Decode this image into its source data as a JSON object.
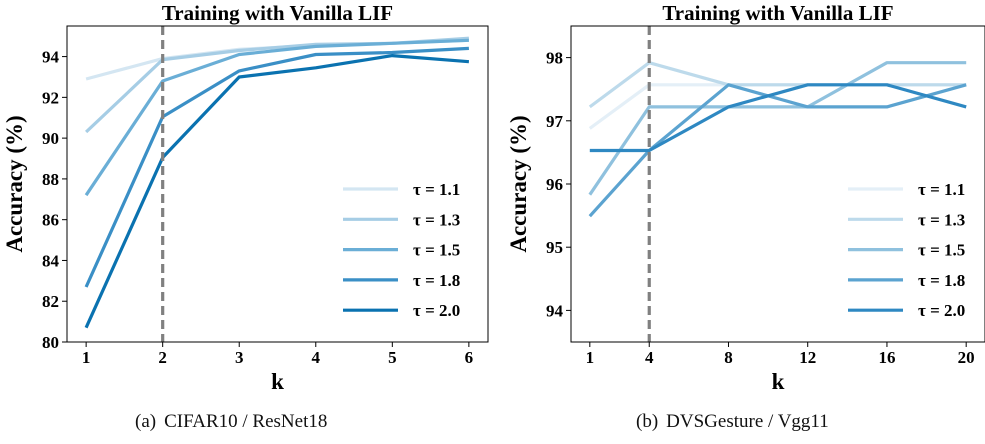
{
  "chart_data": [
    {
      "type": "line",
      "title": "Training with Vanilla LIF",
      "xlabel": "k",
      "ylabel": "Accuracy (%)",
      "x": [
        1,
        2,
        3,
        4,
        5,
        6
      ],
      "x_ticks": [
        "1",
        "2",
        "3",
        "4",
        "5",
        "6"
      ],
      "y_ticks": [
        80,
        82,
        84,
        86,
        88,
        90,
        92,
        94
      ],
      "ylim": [
        80,
        95.5
      ],
      "xlim": [
        0.75,
        6.25
      ],
      "vline_x": 2,
      "legend_position": "lower right",
      "series": [
        {
          "name": "τ = 1.1",
          "values": [
            92.9,
            93.9,
            94.35,
            94.55,
            94.65,
            94.8
          ],
          "color": "#d4e6f2"
        },
        {
          "name": "τ = 1.3",
          "values": [
            90.3,
            93.85,
            94.3,
            94.6,
            94.65,
            94.9
          ],
          "color": "#a6cde5"
        },
        {
          "name": "τ = 1.5",
          "values": [
            87.2,
            92.8,
            94.1,
            94.5,
            94.65,
            94.8
          ],
          "color": "#6aaed6"
        },
        {
          "name": "τ = 1.8",
          "values": [
            82.7,
            91.05,
            93.3,
            94.1,
            94.2,
            94.4
          ],
          "color": "#3a8fc6"
        },
        {
          "name": "τ = 2.0",
          "values": [
            80.7,
            89.05,
            93.0,
            93.45,
            94.05,
            93.75
          ],
          "color": "#0a72b0"
        }
      ],
      "caption_tag": "(a)",
      "caption": "CIFAR10 / ResNet18"
    },
    {
      "type": "line",
      "title": "Training with Vanilla LIF",
      "xlabel": "k",
      "ylabel": "Accuracy (%)",
      "x": [
        1,
        4,
        8,
        12,
        16,
        20
      ],
      "x_ticks": [
        "1",
        "4",
        "8",
        "12",
        "16",
        "20"
      ],
      "y_ticks": [
        94,
        95,
        96,
        97,
        98
      ],
      "ylim": [
        93.5,
        98.5
      ],
      "xlim": [
        0.05,
        20.95
      ],
      "vline_x": 4,
      "legend_position": "lower right",
      "series": [
        {
          "name": "τ = 1.1",
          "values": [
            96.88,
            97.57,
            97.57,
            97.57,
            97.57,
            97.57
          ],
          "color": "#e4eff7"
        },
        {
          "name": "τ = 1.3",
          "values": [
            97.22,
            97.92,
            97.57,
            97.57,
            97.57,
            97.57
          ],
          "color": "#bddaeb"
        },
        {
          "name": "τ = 1.5",
          "values": [
            95.83,
            97.22,
            97.22,
            97.22,
            97.92,
            97.92
          ],
          "color": "#8fc1de"
        },
        {
          "name": "τ = 1.8",
          "values": [
            95.49,
            96.53,
            97.57,
            97.22,
            97.22,
            97.57
          ],
          "color": "#5ba3d0"
        },
        {
          "name": "τ = 2.0",
          "values": [
            96.53,
            96.53,
            97.22,
            97.57,
            97.57,
            97.22
          ],
          "color": "#2e88c2"
        }
      ],
      "caption_tag": "(b)",
      "caption": "DVSGesture / Vgg11"
    }
  ]
}
